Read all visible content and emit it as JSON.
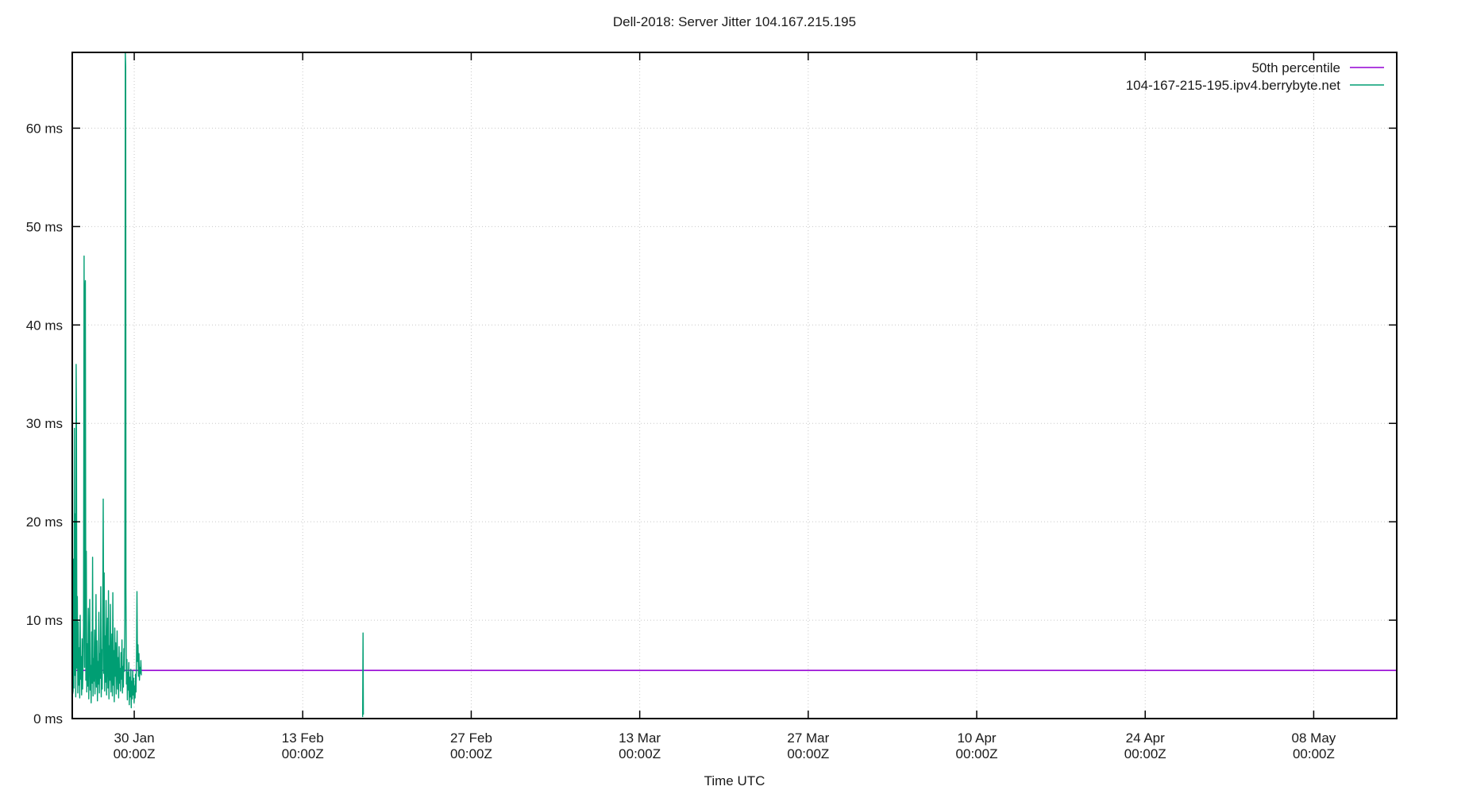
{
  "chart_data": {
    "type": "line",
    "title": "Dell-2018: Server Jitter 104.167.215.195",
    "xlabel": "Time UTC",
    "ylabel": "ms",
    "grid": true,
    "legend_position": "top-right-inside",
    "colors": {
      "background": "#ffffff",
      "border": "#000000",
      "grid": "#c8c8c8",
      "text": "#1a1a1a",
      "percentile_line": "#9400d3",
      "host_line": "#009e73"
    },
    "x_axis": {
      "unit": "days relative to 30 Jan 2018 00:00Z",
      "range": [
        -5.15,
        104.9
      ],
      "ticks": [
        {
          "day": 0,
          "line1": "30 Jan",
          "line2": "00:00Z"
        },
        {
          "day": 14,
          "line1": "13 Feb",
          "line2": "00:00Z"
        },
        {
          "day": 28,
          "line1": "27 Feb",
          "line2": "00:00Z"
        },
        {
          "day": 42,
          "line1": "13 Mar",
          "line2": "00:00Z"
        },
        {
          "day": 56,
          "line1": "27 Mar",
          "line2": "00:00Z"
        },
        {
          "day": 70,
          "line1": "10 Apr",
          "line2": "00:00Z"
        },
        {
          "day": 84,
          "line1": "24 Apr",
          "line2": "00:00Z"
        },
        {
          "day": 98,
          "line1": "08 May",
          "line2": "00:00Z"
        }
      ]
    },
    "y_axis": {
      "range": [
        0,
        67.7
      ],
      "ticks": [
        0,
        10,
        20,
        30,
        40,
        50,
        60
      ],
      "tick_suffix": " ms"
    },
    "legend": [
      {
        "label": "50th percentile",
        "color": "#9400d3"
      },
      {
        "label": "104-167-215-195.ipv4.berrybyte.net",
        "color": "#009e73"
      }
    ],
    "series": [
      {
        "name": "50th percentile",
        "kind": "hline",
        "color": "#9400d3",
        "value": 4.9
      },
      {
        "name": "104-167-215-195.ipv4.berrybyte.net",
        "kind": "line",
        "color": "#009e73",
        "segments": [
          [
            [
              -5.12,
              2.5
            ],
            [
              -5.08,
              2.8
            ],
            [
              -5.05,
              16.2
            ],
            [
              -5.01,
              3.1
            ],
            [
              -4.97,
              29.5
            ],
            [
              -4.93,
              4.4
            ],
            [
              -4.89,
              20.8
            ],
            [
              -4.86,
              2.2
            ],
            [
              -4.83,
              36.0
            ],
            [
              -4.8,
              30.6
            ],
            [
              -4.77,
              5.1
            ],
            [
              -4.73,
              12.4
            ],
            [
              -4.69,
              2.6
            ],
            [
              -4.65,
              9.8
            ],
            [
              -4.61,
              3.4
            ],
            [
              -4.57,
              7.2
            ],
            [
              -4.53,
              2.1
            ],
            [
              -4.49,
              10.5
            ],
            [
              -4.45,
              4.0
            ],
            [
              -4.41,
              6.3
            ],
            [
              -4.37,
              2.4
            ],
            [
              -4.33,
              8.1
            ],
            [
              -4.29,
              3.0
            ],
            [
              -4.25,
              5.6
            ],
            [
              -4.21,
              9.4
            ],
            [
              -4.17,
              47.0
            ],
            [
              -4.13,
              5.2
            ],
            [
              -4.09,
              43.6
            ],
            [
              -4.06,
              44.5
            ],
            [
              -4.02,
              3.9
            ],
            [
              -3.98,
              17.0
            ],
            [
              -3.94,
              2.7
            ],
            [
              -3.9,
              7.6
            ],
            [
              -3.86,
              3.3
            ],
            [
              -3.82,
              11.2
            ],
            [
              -3.78,
              2.0
            ],
            [
              -3.74,
              6.8
            ],
            [
              -3.7,
              12.1
            ],
            [
              -3.66,
              2.9
            ],
            [
              -3.62,
              5.4
            ],
            [
              -3.58,
              1.6
            ],
            [
              -3.54,
              8.8
            ],
            [
              -3.5,
              3.6
            ],
            [
              -3.46,
              16.4
            ],
            [
              -3.42,
              2.3
            ],
            [
              -3.38,
              6.1
            ],
            [
              -3.34,
              3.8
            ],
            [
              -3.3,
              9.0
            ],
            [
              -3.26,
              2.5
            ],
            [
              -3.22,
              5.0
            ],
            [
              -3.18,
              12.6
            ],
            [
              -3.14,
              3.2
            ],
            [
              -3.1,
              7.9
            ],
            [
              -3.06,
              1.8
            ],
            [
              -3.02,
              5.8
            ],
            [
              -2.98,
              3.5
            ],
            [
              -2.94,
              10.8
            ],
            [
              -2.9,
              2.6
            ],
            [
              -2.86,
              6.6
            ],
            [
              -2.82,
              4.1
            ],
            [
              -2.78,
              13.4
            ],
            [
              -2.74,
              2.2
            ],
            [
              -2.7,
              7.0
            ],
            [
              -2.66,
              3.0
            ],
            [
              -2.62,
              9.6
            ],
            [
              -2.58,
              22.3
            ],
            [
              -2.54,
              4.6
            ],
            [
              -2.5,
              14.8
            ],
            [
              -2.46,
              2.8
            ],
            [
              -2.42,
              8.4
            ],
            [
              -2.38,
              3.7
            ],
            [
              -2.34,
              12.0
            ],
            [
              -2.3,
              2.4
            ],
            [
              -2.26,
              6.4
            ],
            [
              -2.22,
              10.2
            ],
            [
              -2.18,
              3.1
            ],
            [
              -2.14,
              13.0
            ],
            [
              -2.1,
              2.0
            ],
            [
              -2.06,
              7.4
            ],
            [
              -2.02,
              3.9
            ],
            [
              -1.98,
              11.6
            ],
            [
              -1.94,
              2.7
            ],
            [
              -1.9,
              5.9
            ],
            [
              -1.86,
              8.6
            ],
            [
              -1.82,
              2.3
            ],
            [
              -1.78,
              12.8
            ],
            [
              -1.74,
              3.4
            ],
            [
              -1.7,
              6.9
            ],
            [
              -1.66,
              1.7
            ],
            [
              -1.62,
              9.2
            ],
            [
              -1.58,
              4.3
            ],
            [
              -1.54,
              7.7
            ],
            [
              -1.5,
              2.5
            ],
            [
              -1.46,
              5.5
            ],
            [
              -1.42,
              8.9
            ],
            [
              -1.38,
              3.0
            ],
            [
              -1.34,
              6.2
            ],
            [
              -1.3,
              2.1
            ],
            [
              -1.26,
              7.3
            ],
            [
              -1.22,
              3.6
            ],
            [
              -1.18,
              5.1
            ],
            [
              -1.14,
              2.8
            ],
            [
              -1.1,
              6.7
            ],
            [
              -1.06,
              4.0
            ],
            [
              -1.02,
              8.0
            ],
            [
              -0.98,
              2.6
            ],
            [
              -0.94,
              5.3
            ],
            [
              -0.9,
              3.2
            ],
            [
              -0.86,
              7.1
            ],
            [
              -0.82,
              4.8
            ],
            [
              -0.78,
              9.9
            ],
            [
              -0.74,
              67.7
            ],
            [
              -0.71,
              66.2
            ],
            [
              -0.69,
              13.2
            ],
            [
              -0.65,
              3.5
            ],
            [
              -0.61,
              6.0
            ],
            [
              -0.57,
              1.9
            ],
            [
              -0.53,
              4.7
            ],
            [
              -0.49,
              2.9
            ],
            [
              -0.45,
              5.7
            ],
            [
              -0.41,
              1.4
            ],
            [
              -0.37,
              4.2
            ],
            [
              -0.33,
              2.2
            ],
            [
              -0.29,
              5.0
            ],
            [
              -0.25,
              1.1
            ],
            [
              -0.21,
              3.8
            ],
            [
              -0.17,
              2.0
            ],
            [
              -0.13,
              4.9
            ],
            [
              -0.09,
              2.4
            ],
            [
              -0.05,
              4.1
            ],
            [
              -0.01,
              1.6
            ],
            [
              0.03,
              3.3
            ],
            [
              0.07,
              2.1
            ],
            [
              0.11,
              4.5
            ],
            [
              0.15,
              2.7
            ],
            [
              0.19,
              6.2
            ],
            [
              0.23,
              12.9
            ],
            [
              0.27,
              5.8
            ],
            [
              0.31,
              7.5
            ],
            [
              0.35,
              4.3
            ],
            [
              0.39,
              6.6
            ],
            [
              0.43,
              3.9
            ],
            [
              0.47,
              5.2
            ],
            [
              0.51,
              4.6
            ],
            [
              0.55,
              5.9
            ],
            [
              0.59,
              4.4
            ]
          ],
          [
            [
              18.98,
              0.15
            ],
            [
              19.01,
              8.7
            ],
            [
              19.04,
              0.4
            ]
          ]
        ]
      }
    ]
  }
}
